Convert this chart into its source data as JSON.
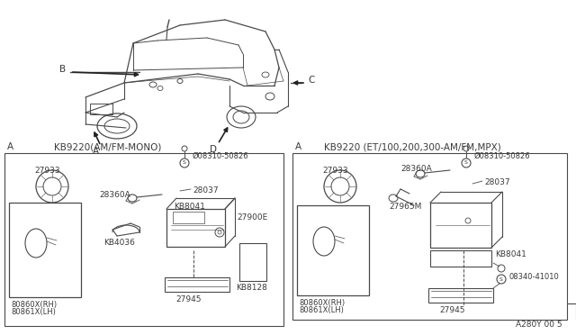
{
  "bg_color": "#ffffff",
  "line_color": "#4a4a4a",
  "text_color": "#3a3a3a",
  "diagram_number": "A280Y 00 5",
  "left_panel_title": "KB9220(AM/FM-MONO)",
  "right_panel_title": "KB9220 (ET/100,200,300-AM/FM,MPX)"
}
